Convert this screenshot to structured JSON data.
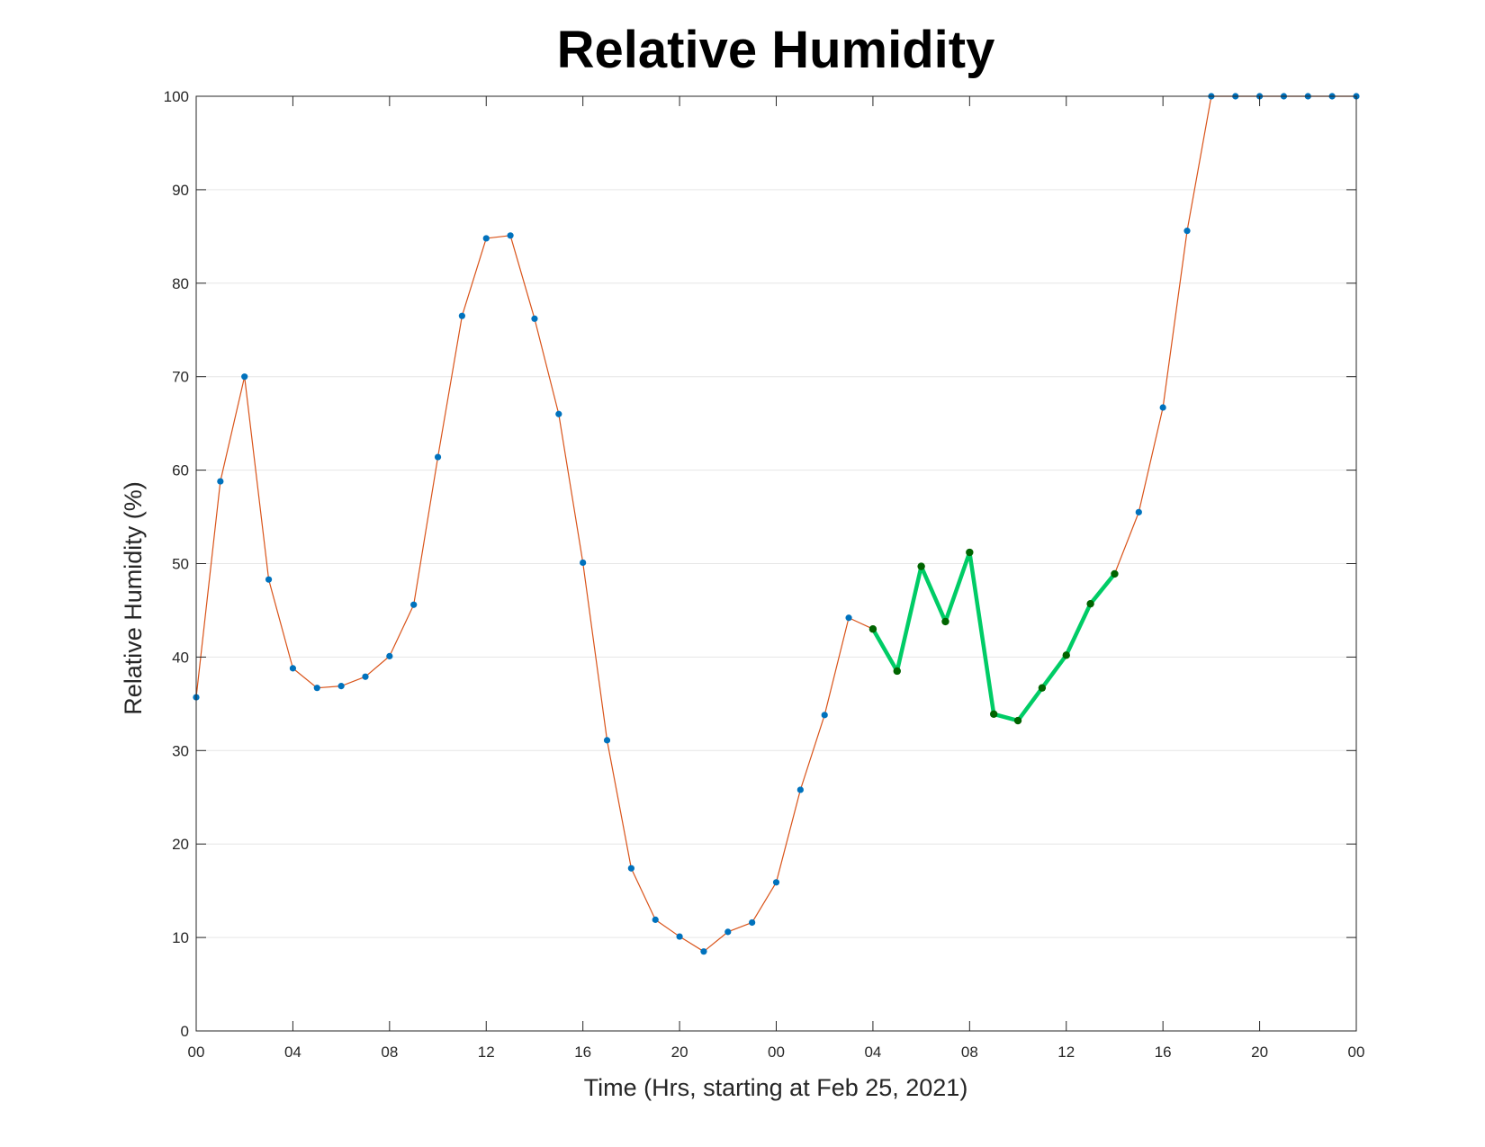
{
  "chart_data": {
    "type": "line",
    "title": "Relative Humidity",
    "xlabel": "Time (Hrs, starting at Feb 25, 2021)",
    "ylabel": "Relative Humidity (%)",
    "ylim": [
      0,
      100
    ],
    "yticks": [
      0,
      10,
      20,
      30,
      40,
      50,
      60,
      70,
      80,
      90,
      100
    ],
    "x_unit": "hours",
    "xlim": [
      0,
      48
    ],
    "xticks": [
      0,
      4,
      8,
      12,
      16,
      20,
      24,
      28,
      32,
      36,
      40,
      44,
      48
    ],
    "xtick_labels": [
      "00",
      "04",
      "08",
      "12",
      "16",
      "20",
      "00",
      "04",
      "08",
      "12",
      "16",
      "20",
      "00"
    ],
    "grid": "horizontal",
    "series": [
      {
        "line_color": "#d95319",
        "marker_color": "#0072bd",
        "x": [
          0,
          1,
          2,
          3,
          4,
          5,
          6,
          7,
          8,
          9,
          10,
          11,
          12,
          13,
          14,
          15,
          16,
          17,
          18,
          19,
          20,
          21,
          22,
          23,
          24,
          25,
          26,
          27,
          28,
          29,
          30,
          31,
          32,
          33,
          34,
          35,
          36,
          37,
          38,
          39,
          40,
          41,
          42,
          43,
          44,
          45,
          46,
          47,
          48
        ],
        "values": [
          35.7,
          58.8,
          70.0,
          48.3,
          38.8,
          36.7,
          36.9,
          37.9,
          40.1,
          45.6,
          61.4,
          76.5,
          84.8,
          85.1,
          76.2,
          66.0,
          50.1,
          31.1,
          17.4,
          11.9,
          10.1,
          8.5,
          10.6,
          11.6,
          15.9,
          25.8,
          33.8,
          44.2,
          43.0,
          38.5,
          49.7,
          43.8,
          51.2,
          33.9,
          33.2,
          36.7,
          40.2,
          45.7,
          48.9,
          55.5,
          66.7,
          85.6,
          100,
          100,
          100,
          100,
          100,
          100,
          100
        ]
      },
      {
        "line_color": "#00cc66",
        "marker_color": "#006400",
        "x": [
          28,
          29,
          30,
          31,
          32,
          33,
          34,
          35,
          36,
          37,
          38
        ],
        "values": [
          43.0,
          38.5,
          49.7,
          43.8,
          51.2,
          33.9,
          33.2,
          36.7,
          40.2,
          45.7,
          48.9
        ]
      }
    ]
  }
}
